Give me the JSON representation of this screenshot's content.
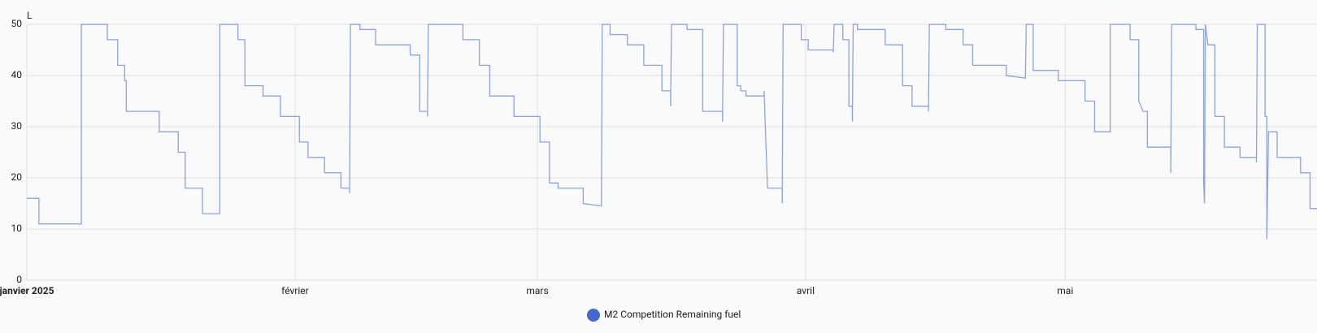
{
  "chart_data": {
    "type": "line",
    "y_label": "L",
    "x": [
      0,
      1.4,
      1.4,
      6.3,
      6.3,
      9.3,
      9.3,
      10.5,
      10.5,
      11.3,
      11.3,
      11.5,
      11.5,
      15.3,
      15.3,
      17.5,
      17.5,
      18.3,
      18.3,
      20.3,
      20.3,
      22.3,
      22.3,
      24.4,
      24.4,
      25.2,
      25.2,
      27.3,
      27.3,
      29.3,
      29.3,
      31.5,
      31.5,
      32.5,
      32.5,
      34.4,
      34.4,
      36.3,
      36.3,
      37.3,
      37.3,
      37.4,
      38.5,
      38.5,
      40.3,
      40.3,
      44.3,
      44.3,
      45.4,
      45.4,
      46.3,
      46.3,
      46.4,
      50.4,
      50.4,
      52.3,
      52.3,
      53.5,
      53.5,
      56.3,
      56.3,
      59.3,
      59.3,
      60.4,
      60.4,
      61.4,
      61.4,
      64.3,
      64.3,
      66.4,
      66.5,
      67.4,
      67.4,
      69.4,
      69.4,
      71.3,
      71.3,
      73.4,
      73.4,
      74.4,
      74.4,
      74.5,
      76.3,
      76.3,
      78.1,
      78.1,
      80.4,
      80.4,
      80.5,
      82.1,
      82.1,
      82.5,
      82.5,
      83.1,
      83.1,
      85.2,
      85.2,
      85.6,
      87.3,
      87.3,
      87.4,
      89.5,
      89.5,
      90.3,
      90.3,
      93.2,
      93.2,
      93.3,
      94.3,
      94.3,
      95,
      95,
      95.4,
      95.4,
      95.5,
      96,
      96,
      99.2,
      99.2,
      101.2,
      101.2,
      102.3,
      102.3,
      104.2,
      104.2,
      104.3,
      106.2,
      106.2,
      108.2,
      108.2,
      109.3,
      109.3,
      113.2,
      113.2,
      115.4,
      115.5,
      116.3,
      116.3,
      119.2,
      119.2,
      122.3,
      122.3,
      123.4,
      123.4,
      125.2,
      125.2,
      127.5,
      127.5,
      128.5,
      128.5,
      129,
      129.5,
      129.5,
      132.2,
      132.2,
      132.3,
      135.1,
      135.1,
      136,
      136,
      136.1,
      136.2,
      136.5,
      137.3,
      137.3,
      138.4,
      138.4,
      140.2,
      140.2,
      142.1,
      142.1,
      142.2,
      143.1,
      143.1,
      143.3,
      143.3,
      143.5,
      144.5,
      144.5,
      147.2,
      147.2,
      148.3,
      148.3,
      149.1
    ],
    "series": [
      {
        "name": "M2 Competition Remaining fuel",
        "color": "#4169cf",
        "values": [
          16,
          16,
          11,
          11,
          50,
          50,
          47,
          47,
          42,
          42,
          39,
          39,
          33,
          33,
          29,
          29,
          25,
          25,
          18,
          18,
          13,
          13,
          50,
          50,
          47,
          47,
          38,
          38,
          36,
          36,
          32,
          32,
          27,
          27,
          24,
          24,
          21,
          21,
          18,
          18,
          17,
          50,
          50,
          49,
          49,
          46,
          46,
          44,
          44,
          33,
          33,
          32,
          50,
          50,
          47,
          47,
          42,
          42,
          36,
          36,
          32,
          32,
          27,
          27,
          19,
          19,
          18,
          18,
          15,
          14.5,
          50,
          50,
          48,
          48,
          46,
          46,
          42,
          42,
          37,
          37,
          34,
          50,
          50,
          49,
          49,
          33,
          33,
          31,
          50,
          50,
          38,
          38,
          37,
          37,
          36,
          36,
          37,
          18,
          18,
          15,
          50,
          50,
          47,
          47,
          45,
          45,
          44.5,
          50,
          50,
          47,
          47,
          34,
          34,
          31,
          50,
          50,
          49,
          49,
          46,
          46,
          38,
          38,
          34,
          34,
          33,
          50,
          50,
          49,
          49,
          46,
          46,
          42,
          42,
          40,
          39.5,
          50,
          50,
          41,
          41,
          39,
          39,
          35,
          35,
          29,
          29,
          50,
          50,
          47,
          47,
          35,
          33,
          33,
          26,
          26,
          21,
          50,
          50,
          49,
          49,
          19,
          15,
          50,
          46,
          46,
          32,
          32,
          26,
          26,
          24,
          24,
          23,
          50,
          50,
          32,
          32,
          8,
          29,
          29,
          24,
          24,
          21,
          21,
          14,
          14
        ]
      }
    ],
    "xlim": [
      0,
      149.1
    ],
    "xticks": [
      {
        "value": 0,
        "label": "janvier 2025"
      },
      {
        "value": 31,
        "label": "février"
      },
      {
        "value": 59,
        "label": "mars"
      },
      {
        "value": 90,
        "label": "avril"
      },
      {
        "value": 120,
        "label": "mai"
      }
    ],
    "ylim": [
      0,
      50
    ],
    "yticks": [
      0,
      10,
      20,
      30,
      40,
      50
    ],
    "grid": true
  }
}
